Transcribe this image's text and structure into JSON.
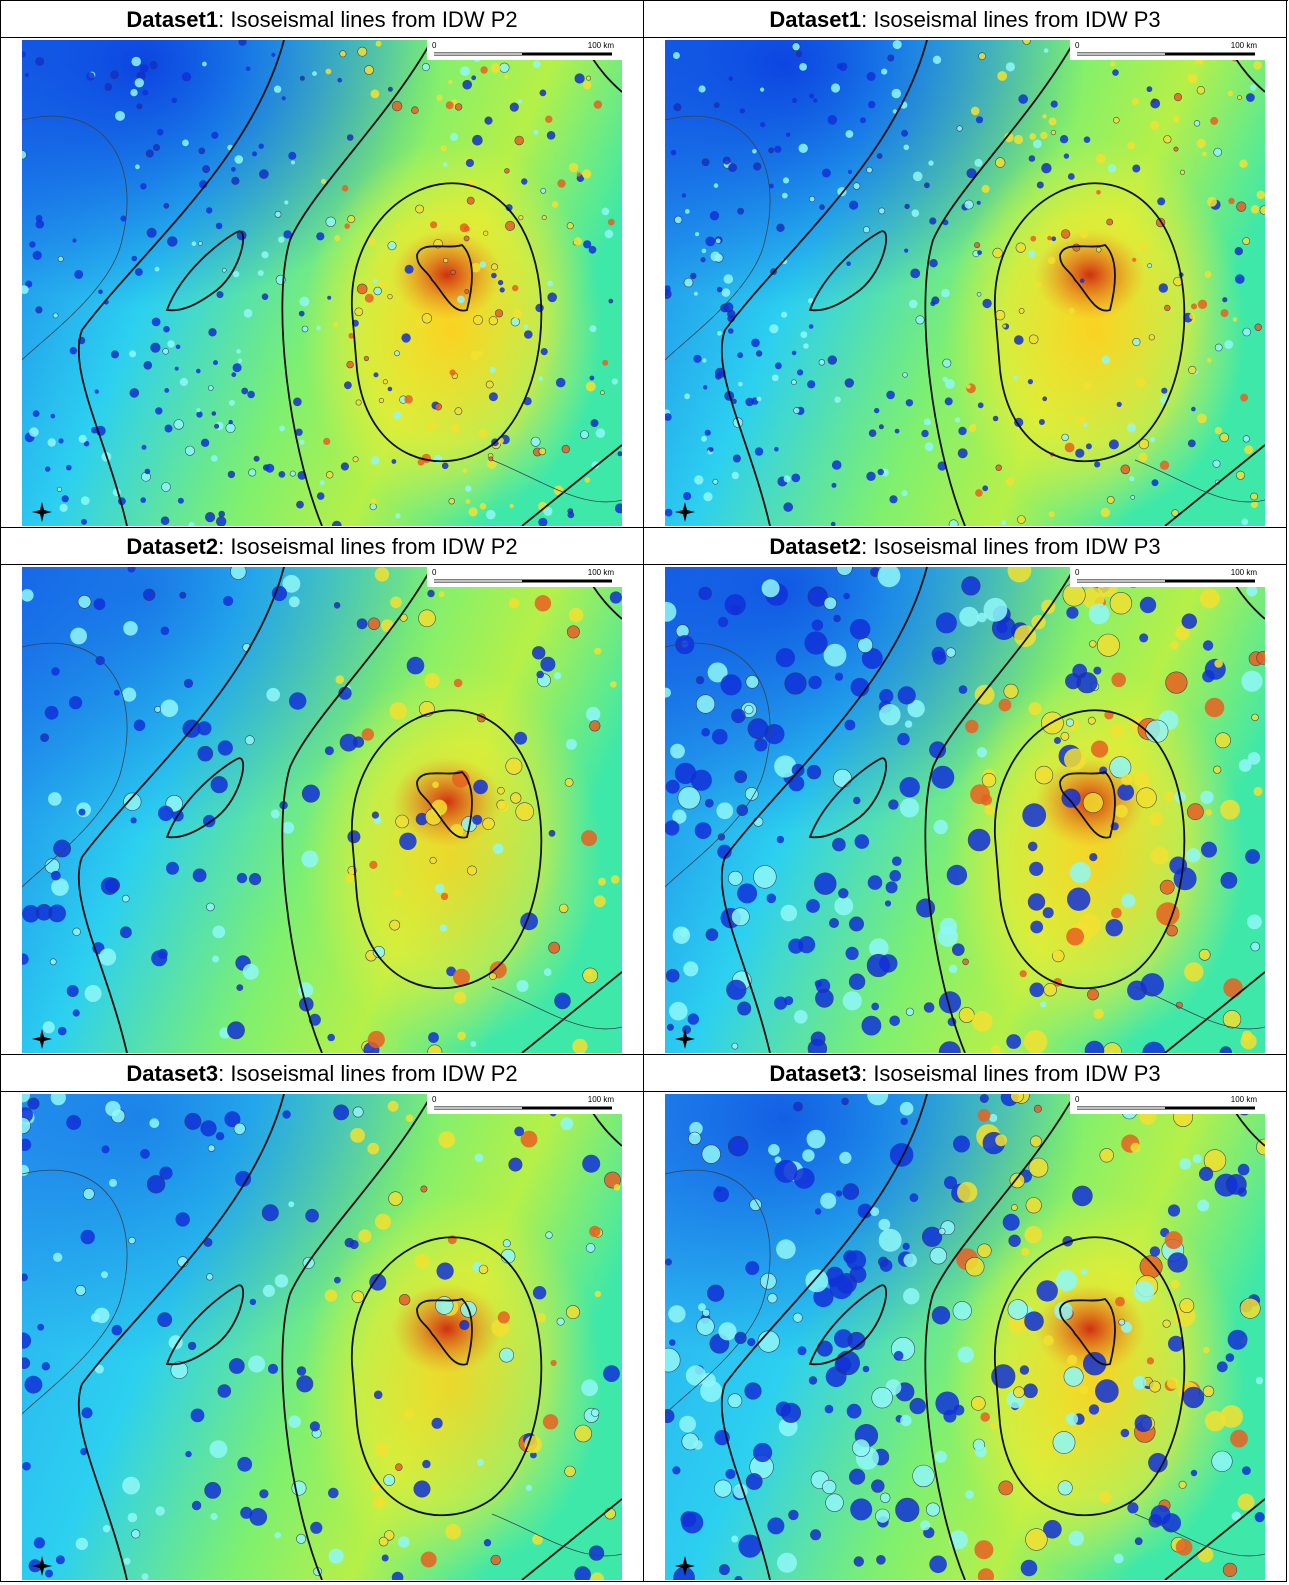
{
  "cells": [
    {
      "dataset": "Dataset1",
      "caption": ": Isoseismal lines from IDW P2",
      "scale_start": "0",
      "scale_end": "100 km"
    },
    {
      "dataset": "Dataset1",
      "caption": ": Isoseismal lines from IDW P3",
      "scale_start": "0",
      "scale_end": "100 km"
    },
    {
      "dataset": "Dataset2",
      "caption": ": Isoseismal lines from IDW P2",
      "scale_start": "0",
      "scale_end": "100 km"
    },
    {
      "dataset": "Dataset2",
      "caption": ": Isoseismal lines from IDW P3",
      "scale_start": "0",
      "scale_end": "100 km"
    },
    {
      "dataset": "Dataset3",
      "caption": ": Isoseismal lines from IDW P2",
      "scale_start": "0",
      "scale_end": "100 km"
    },
    {
      "dataset": "Dataset3",
      "caption": ": Isoseismal lines from IDW P3",
      "scale_start": "0",
      "scale_end": "100 km"
    }
  ]
}
